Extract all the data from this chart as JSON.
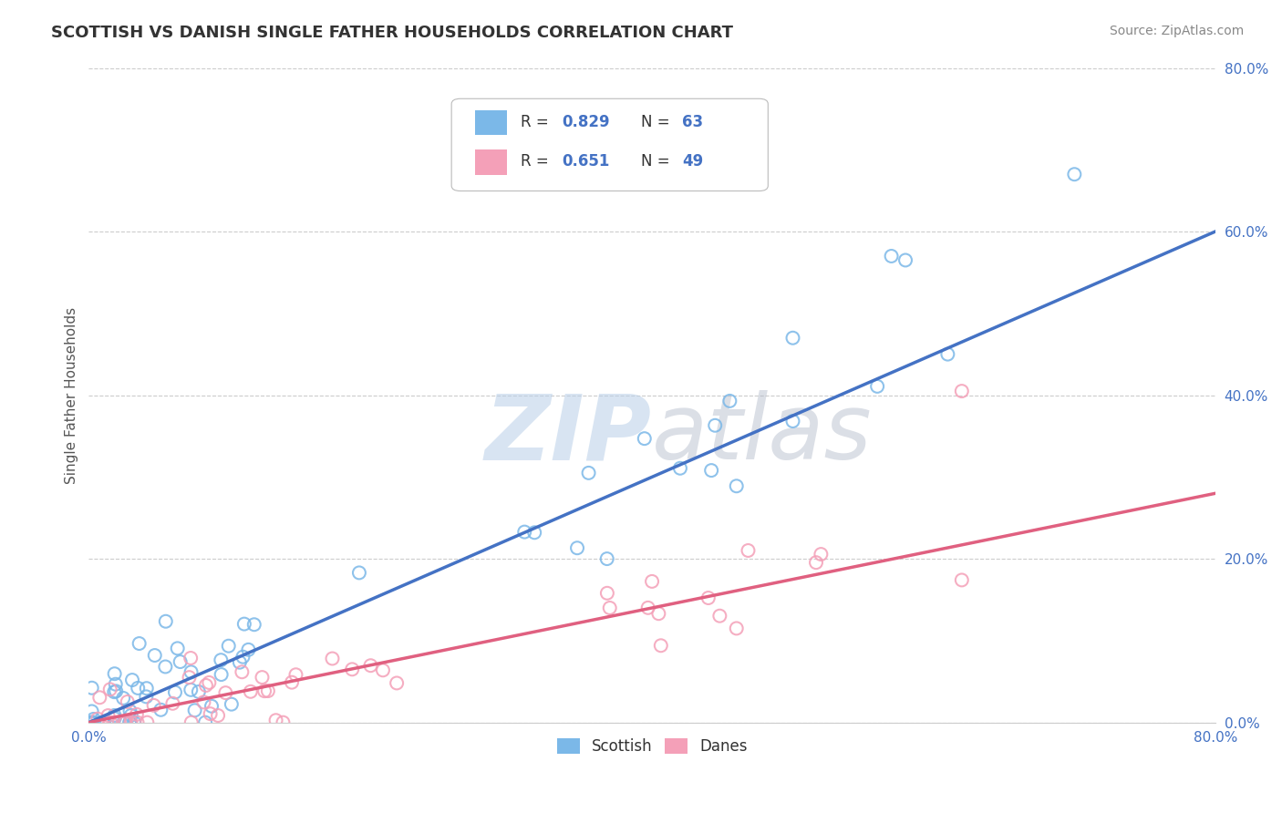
{
  "title": "SCOTTISH VS DANISH SINGLE FATHER HOUSEHOLDS CORRELATION CHART",
  "source": "Source: ZipAtlas.com",
  "ylabel": "Single Father Households",
  "y_ticks": [
    0.0,
    0.2,
    0.4,
    0.6,
    0.8
  ],
  "y_tick_labels": [
    "0.0%",
    "20.0%",
    "40.0%",
    "60.0%",
    "80.0%"
  ],
  "x_tick_labels": [
    "0.0%",
    "80.0%"
  ],
  "scottish_color": "#7bb8e8",
  "scottish_edge": "#7bb8e8",
  "danes_color": "#f4a0b8",
  "danes_edge": "#f4a0b8",
  "sc_line_color": "#4472c4",
  "da_line_color": "#e06080",
  "background_color": "#ffffff",
  "title_fontsize": 13,
  "R_scottish": 0.829,
  "N_scottish": 63,
  "R_danes": 0.651,
  "N_danes": 49,
  "xlim": [
    0.0,
    0.8
  ],
  "ylim": [
    0.0,
    0.8
  ],
  "sc_line_x0": 0.0,
  "sc_line_y0": 0.0,
  "sc_line_x1": 0.8,
  "sc_line_y1": 0.6,
  "da_line_x0": 0.0,
  "da_line_y0": 0.0,
  "da_line_x1": 0.8,
  "da_line_y1": 0.28,
  "tick_color": "#4472c4",
  "grid_color": "#cccccc",
  "legend_R_color": "#4472c4",
  "legend_N_color": "#4472c4"
}
